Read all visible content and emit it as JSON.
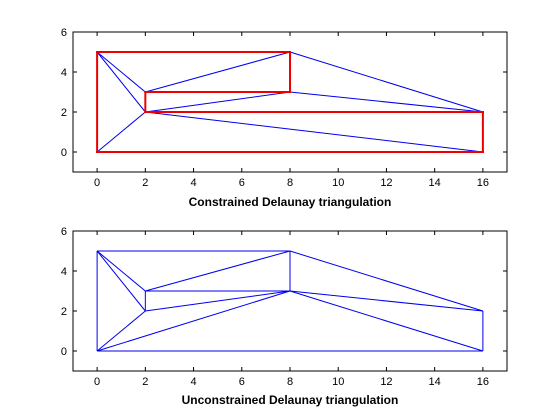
{
  "chart_data": [
    {
      "type": "triangulation",
      "title": "",
      "xlabel": "Constrained Delaunay triangulation",
      "ylabel": "",
      "xlim": [
        -1,
        17
      ],
      "ylim": [
        -1,
        6
      ],
      "xticks": [
        0,
        2,
        4,
        6,
        8,
        10,
        12,
        14,
        16
      ],
      "yticks": [
        0,
        2,
        4,
        6
      ],
      "grid": false,
      "edge_color": "#0000ee",
      "constraint_color": "#ee0000",
      "edges": [
        [
          [
            0,
            5
          ],
          [
            2,
            3
          ]
        ],
        [
          [
            0,
            5
          ],
          [
            2,
            2
          ]
        ],
        [
          [
            0,
            0
          ],
          [
            2,
            2
          ]
        ],
        [
          [
            2,
            3
          ],
          [
            8,
            5
          ]
        ],
        [
          [
            2,
            2
          ],
          [
            8,
            3
          ]
        ],
        [
          [
            8,
            3
          ],
          [
            16,
            2
          ]
        ],
        [
          [
            8,
            5
          ],
          [
            16,
            2
          ]
        ],
        [
          [
            2,
            2
          ],
          [
            16,
            0
          ]
        ]
      ],
      "constraints": [
        [
          [
            0,
            0
          ],
          [
            0,
            5
          ]
        ],
        [
          [
            0,
            5
          ],
          [
            8,
            5
          ]
        ],
        [
          [
            8,
            5
          ],
          [
            8,
            3
          ]
        ],
        [
          [
            8,
            3
          ],
          [
            2,
            3
          ]
        ],
        [
          [
            2,
            3
          ],
          [
            2,
            2
          ]
        ],
        [
          [
            2,
            2
          ],
          [
            16,
            2
          ]
        ],
        [
          [
            16,
            2
          ],
          [
            16,
            0
          ]
        ],
        [
          [
            16,
            0
          ],
          [
            0,
            0
          ]
        ]
      ]
    },
    {
      "type": "triangulation",
      "title": "",
      "xlabel": "Unconstrained Delaunay triangulation",
      "ylabel": "",
      "xlim": [
        -1,
        17
      ],
      "ylim": [
        -1,
        6
      ],
      "xticks": [
        0,
        2,
        4,
        6,
        8,
        10,
        12,
        14,
        16
      ],
      "yticks": [
        0,
        2,
        4,
        6
      ],
      "grid": false,
      "edge_color": "#0000ee",
      "edges": [
        [
          [
            0,
            5
          ],
          [
            8,
            5
          ]
        ],
        [
          [
            8,
            5
          ],
          [
            16,
            2
          ]
        ],
        [
          [
            16,
            2
          ],
          [
            16,
            0
          ]
        ],
        [
          [
            16,
            0
          ],
          [
            0,
            0
          ]
        ],
        [
          [
            0,
            0
          ],
          [
            0,
            5
          ]
        ],
        [
          [
            0,
            5
          ],
          [
            2,
            3
          ]
        ],
        [
          [
            0,
            5
          ],
          [
            2,
            2
          ]
        ],
        [
          [
            0,
            0
          ],
          [
            2,
            2
          ]
        ],
        [
          [
            2,
            3
          ],
          [
            2,
            2
          ]
        ],
        [
          [
            2,
            3
          ],
          [
            8,
            5
          ]
        ],
        [
          [
            2,
            3
          ],
          [
            8,
            3
          ]
        ],
        [
          [
            2,
            2
          ],
          [
            8,
            3
          ]
        ],
        [
          [
            0,
            0
          ],
          [
            8,
            3
          ]
        ],
        [
          [
            8,
            5
          ],
          [
            8,
            3
          ]
        ],
        [
          [
            8,
            3
          ],
          [
            16,
            2
          ]
        ],
        [
          [
            8,
            3
          ],
          [
            16,
            0
          ]
        ]
      ],
      "constraints": []
    }
  ]
}
